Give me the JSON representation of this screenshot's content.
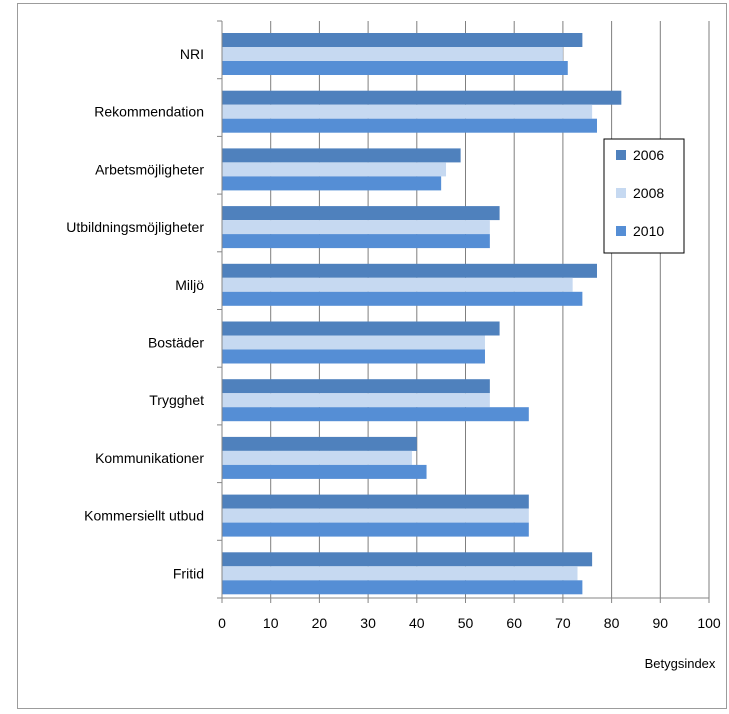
{
  "chart_data": {
    "type": "bar",
    "orientation": "horizontal",
    "title": "",
    "xlabel": "Betygsindex",
    "ylabel": "",
    "xlim": [
      0,
      100
    ],
    "xticks": [
      0,
      10,
      20,
      30,
      40,
      50,
      60,
      70,
      80,
      90,
      100
    ],
    "grid": "vertical major gridlines",
    "legend_position": "right",
    "categories": [
      "NRI",
      "Rekommendation",
      "Arbetsmöjligheter",
      "Utbildningsmöjligheter",
      "Miljö",
      "Bostäder",
      "Trygghet",
      "Kommunikationer",
      "Kommersiellt utbud",
      "Fritid"
    ],
    "series": [
      {
        "name": "2006",
        "color": "#4f81bd",
        "values": [
          74,
          82,
          49,
          57,
          77,
          57,
          55,
          40,
          63,
          76
        ]
      },
      {
        "name": "2008",
        "color": "#c6d9f1",
        "values": [
          70,
          76,
          46,
          55,
          72,
          54,
          55,
          39,
          63,
          73
        ]
      },
      {
        "name": "2010",
        "color": "#558ed5",
        "values": [
          71,
          77,
          45,
          55,
          74,
          54,
          63,
          42,
          63,
          74
        ]
      }
    ]
  }
}
